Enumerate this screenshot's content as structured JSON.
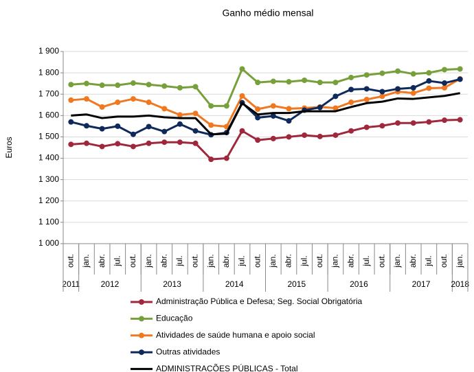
{
  "chart_data": {
    "type": "line",
    "title": "Ganho médio mensal",
    "y_label": "Euros",
    "categories": [
      "out.",
      "jan.",
      "abr.",
      "jul.",
      "out.",
      "jan.",
      "abr.",
      "jul.",
      "out.",
      "jan.",
      "abr.",
      "jul.",
      "out.",
      "jan.",
      "abr.",
      "jul.",
      "out.",
      "jan.",
      "abr.",
      "jul.",
      "out.",
      "jan.",
      "abr.",
      "jul.",
      "out.",
      "jan."
    ],
    "x_groups": [
      {
        "label": "2011",
        "count": 1
      },
      {
        "label": "2012",
        "count": 4
      },
      {
        "label": "2013",
        "count": 4
      },
      {
        "label": "2014",
        "count": 4
      },
      {
        "label": "2015",
        "count": 4
      },
      {
        "label": "2016",
        "count": 4
      },
      {
        "label": "2017",
        "count": 4
      },
      {
        "label": "2018",
        "count": 1
      }
    ],
    "ylim": [
      1000,
      1900
    ],
    "yticks": [
      {
        "value": 1000,
        "label": "1 000"
      },
      {
        "value": 1100,
        "label": "1 100"
      },
      {
        "value": 1200,
        "label": "1 200"
      },
      {
        "value": 1300,
        "label": "1 300"
      },
      {
        "value": 1400,
        "label": "1 400"
      },
      {
        "value": 1500,
        "label": "1 500"
      },
      {
        "value": 1600,
        "label": "1 600"
      },
      {
        "value": 1700,
        "label": "1 700"
      },
      {
        "value": 1800,
        "label": "1 800"
      },
      {
        "value": 1900,
        "label": "1 900"
      }
    ],
    "grid": true,
    "series": [
      {
        "name": "Administração Pública e Defesa; Seg. Social Obrigatória",
        "color": "#a0283c",
        "marker": true,
        "values": [
          1465,
          1470,
          1455,
          1468,
          1455,
          1470,
          1475,
          1475,
          1470,
          1395,
          1400,
          1528,
          1485,
          1492,
          1500,
          1508,
          1502,
          1508,
          1528,
          1545,
          1552,
          1565,
          1565,
          1570,
          1578,
          1580
        ]
      },
      {
        "name": "Educação",
        "color": "#77a03c",
        "marker": true,
        "values": [
          1745,
          1750,
          1742,
          1742,
          1752,
          1745,
          1738,
          1730,
          1735,
          1645,
          1645,
          1818,
          1755,
          1760,
          1758,
          1765,
          1755,
          1755,
          1778,
          1790,
          1798,
          1808,
          1795,
          1800,
          1815,
          1818
        ]
      },
      {
        "name": "Atividades de saúde humana e apoio social",
        "color": "#f07820",
        "marker": true,
        "values": [
          1672,
          1678,
          1640,
          1662,
          1678,
          1662,
          1632,
          1603,
          1610,
          1555,
          1548,
          1692,
          1630,
          1645,
          1632,
          1635,
          1640,
          1635,
          1662,
          1675,
          1690,
          1712,
          1705,
          1728,
          1730,
          1772
        ]
      },
      {
        "name": "Outras atividades",
        "color": "#0f2a5a",
        "marker": true,
        "values": [
          1570,
          1552,
          1538,
          1550,
          1512,
          1548,
          1525,
          1560,
          1528,
          1510,
          1520,
          1660,
          1590,
          1598,
          1575,
          1625,
          1638,
          1690,
          1722,
          1725,
          1712,
          1725,
          1730,
          1762,
          1752,
          1770
        ]
      },
      {
        "name": "ADMINISTRACÕES PÚBLICAS - Total",
        "color": "#000000",
        "marker": false,
        "values": [
          1600,
          1605,
          1588,
          1595,
          1595,
          1600,
          1592,
          1588,
          1588,
          1512,
          1515,
          1658,
          1605,
          1612,
          1612,
          1620,
          1620,
          1620,
          1640,
          1658,
          1665,
          1680,
          1678,
          1685,
          1692,
          1705
        ]
      }
    ]
  }
}
